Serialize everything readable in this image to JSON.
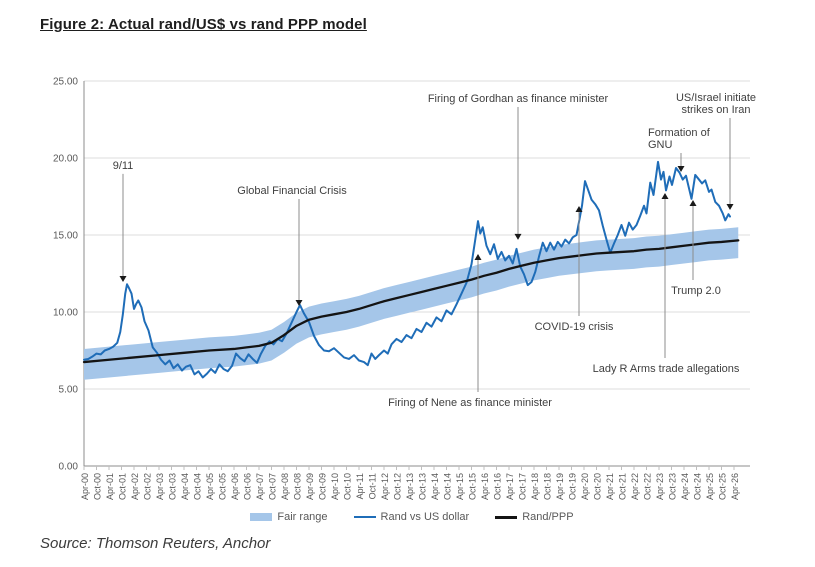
{
  "title": "Figure 2: Actual rand/US$ vs rand PPP model",
  "source": "Source: Thomson Reuters, Anchor",
  "legend": {
    "items": [
      {
        "label": "Fair range"
      },
      {
        "label": "Rand vs US dollar"
      },
      {
        "label": "Rand/PPP"
      }
    ]
  },
  "colors": {
    "band": "#a5c6e9",
    "usd_line": "#1f6db8",
    "ppp_line": "#141414",
    "gridline": "#dcdcdc",
    "axis": "#8c8c8c",
    "tick_text": "#595959",
    "annotation_text": "#3f3f3f",
    "leader_line": "#8c8c8c",
    "arrow": "#1a1a1a"
  },
  "chart_data": {
    "type": "line",
    "title": "",
    "xlabel": "",
    "ylabel": "",
    "x_unit": "years since Apr-2000",
    "ylim": [
      0,
      25
    ],
    "grid": "horizontal",
    "legend_position": "bottom",
    "y_tick_labels": [
      "0.00",
      "5.00",
      "10.00",
      "15.00",
      "20.00",
      "25.00"
    ],
    "y_tick_values": [
      0,
      5,
      10,
      15,
      20,
      25
    ],
    "x_tick_labels": [
      "Apr-00",
      "Oct-00",
      "Apr-01",
      "Oct-01",
      "Apr-02",
      "Oct-02",
      "Apr-03",
      "Oct-03",
      "Apr-04",
      "Oct-04",
      "Apr-05",
      "Oct-05",
      "Apr-06",
      "Oct-06",
      "Apr-07",
      "Oct-07",
      "Apr-08",
      "Oct-08",
      "Apr-09",
      "Oct-09",
      "Apr-10",
      "Oct-10",
      "Apr-11",
      "Oct-11",
      "Apr-12",
      "Oct-12",
      "Apr-13",
      "Oct-13",
      "Apr-14",
      "Oct-14",
      "Apr-15",
      "Oct-15",
      "Apr-16",
      "Oct-16",
      "Apr-17",
      "Oct-17",
      "Apr-18",
      "Oct-18",
      "Apr-19",
      "Oct-19",
      "Apr-20",
      "Oct-20",
      "Apr-21",
      "Oct-21",
      "Apr-22",
      "Oct-22",
      "Apr-23",
      "Oct-23",
      "Apr-24",
      "Oct-24",
      "Apr-25",
      "Oct-25",
      "Apr-26"
    ],
    "series": [
      {
        "name": "Fair range",
        "type": "band",
        "around": "Rand/PPP",
        "halfwidth_up": 0.85,
        "halfwidth_down": 1.15,
        "color": "#a5c6e9"
      },
      {
        "name": "Rand vs US dollar",
        "type": "line",
        "color": "#1f6db8",
        "points": [
          [
            0,
            6.9
          ],
          [
            0.17,
            6.95
          ],
          [
            0.33,
            7.1
          ],
          [
            0.5,
            7.3
          ],
          [
            0.67,
            7.25
          ],
          [
            0.83,
            7.5
          ],
          [
            1.0,
            7.6
          ],
          [
            1.17,
            7.75
          ],
          [
            1.33,
            8.0
          ],
          [
            1.45,
            8.7
          ],
          [
            1.55,
            9.8
          ],
          [
            1.65,
            11.2
          ],
          [
            1.72,
            11.8
          ],
          [
            1.8,
            11.55
          ],
          [
            1.9,
            11.2
          ],
          [
            2.0,
            10.2
          ],
          [
            2.08,
            10.5
          ],
          [
            2.17,
            10.75
          ],
          [
            2.3,
            10.3
          ],
          [
            2.42,
            9.4
          ],
          [
            2.58,
            8.8
          ],
          [
            2.75,
            7.7
          ],
          [
            2.92,
            7.35
          ],
          [
            3.08,
            6.9
          ],
          [
            3.25,
            6.6
          ],
          [
            3.42,
            6.85
          ],
          [
            3.58,
            6.35
          ],
          [
            3.75,
            6.6
          ],
          [
            3.92,
            6.2
          ],
          [
            4.08,
            6.45
          ],
          [
            4.25,
            6.55
          ],
          [
            4.42,
            5.95
          ],
          [
            4.58,
            6.15
          ],
          [
            4.75,
            5.75
          ],
          [
            4.92,
            6.0
          ],
          [
            5.08,
            6.3
          ],
          [
            5.25,
            6.05
          ],
          [
            5.42,
            6.6
          ],
          [
            5.58,
            6.3
          ],
          [
            5.75,
            6.15
          ],
          [
            5.92,
            6.5
          ],
          [
            6.08,
            7.3
          ],
          [
            6.25,
            7.0
          ],
          [
            6.42,
            6.8
          ],
          [
            6.58,
            7.25
          ],
          [
            6.75,
            6.95
          ],
          [
            6.92,
            6.7
          ],
          [
            7.08,
            7.3
          ],
          [
            7.25,
            7.8
          ],
          [
            7.42,
            8.1
          ],
          [
            7.58,
            7.9
          ],
          [
            7.75,
            8.25
          ],
          [
            7.92,
            8.1
          ],
          [
            8.1,
            8.6
          ],
          [
            8.3,
            9.3
          ],
          [
            8.5,
            10.0
          ],
          [
            8.64,
            10.45
          ],
          [
            8.8,
            9.9
          ],
          [
            9.0,
            9.35
          ],
          [
            9.2,
            8.45
          ],
          [
            9.4,
            7.85
          ],
          [
            9.6,
            7.5
          ],
          [
            9.8,
            7.45
          ],
          [
            10.0,
            7.65
          ],
          [
            10.2,
            7.35
          ],
          [
            10.4,
            7.05
          ],
          [
            10.6,
            6.95
          ],
          [
            10.8,
            7.2
          ],
          [
            11.0,
            6.85
          ],
          [
            11.2,
            6.75
          ],
          [
            11.35,
            6.55
          ],
          [
            11.5,
            7.3
          ],
          [
            11.65,
            6.95
          ],
          [
            11.8,
            7.2
          ],
          [
            12.0,
            7.5
          ],
          [
            12.15,
            7.3
          ],
          [
            12.3,
            7.9
          ],
          [
            12.5,
            8.25
          ],
          [
            12.7,
            8.05
          ],
          [
            12.9,
            8.5
          ],
          [
            13.1,
            8.3
          ],
          [
            13.3,
            8.9
          ],
          [
            13.5,
            8.7
          ],
          [
            13.7,
            9.3
          ],
          [
            13.9,
            9.05
          ],
          [
            14.1,
            9.65
          ],
          [
            14.3,
            9.4
          ],
          [
            14.5,
            10.1
          ],
          [
            14.7,
            9.85
          ],
          [
            14.9,
            10.5
          ],
          [
            15.1,
            11.2
          ],
          [
            15.3,
            11.9
          ],
          [
            15.5,
            13.1
          ],
          [
            15.65,
            14.7
          ],
          [
            15.76,
            15.9
          ],
          [
            15.85,
            15.1
          ],
          [
            15.95,
            15.5
          ],
          [
            16.1,
            14.3
          ],
          [
            16.25,
            13.75
          ],
          [
            16.4,
            14.4
          ],
          [
            16.55,
            13.45
          ],
          [
            16.7,
            13.9
          ],
          [
            16.85,
            13.35
          ],
          [
            17.0,
            13.65
          ],
          [
            17.15,
            13.15
          ],
          [
            17.3,
            14.1
          ],
          [
            17.45,
            12.95
          ],
          [
            17.6,
            12.45
          ],
          [
            17.75,
            11.75
          ],
          [
            17.9,
            11.95
          ],
          [
            18.05,
            12.6
          ],
          [
            18.2,
            13.6
          ],
          [
            18.35,
            14.5
          ],
          [
            18.5,
            13.95
          ],
          [
            18.65,
            14.5
          ],
          [
            18.8,
            14.05
          ],
          [
            18.95,
            14.55
          ],
          [
            19.1,
            14.25
          ],
          [
            19.25,
            14.7
          ],
          [
            19.4,
            14.45
          ],
          [
            19.55,
            14.85
          ],
          [
            19.7,
            15.0
          ],
          [
            19.8,
            15.85
          ],
          [
            19.92,
            16.9
          ],
          [
            20.04,
            18.5
          ],
          [
            20.15,
            18.0
          ],
          [
            20.3,
            17.3
          ],
          [
            20.45,
            17.0
          ],
          [
            20.6,
            16.6
          ],
          [
            20.75,
            15.6
          ],
          [
            20.9,
            14.7
          ],
          [
            21.05,
            13.85
          ],
          [
            21.2,
            14.45
          ],
          [
            21.35,
            15.0
          ],
          [
            21.5,
            15.65
          ],
          [
            21.65,
            14.95
          ],
          [
            21.8,
            15.8
          ],
          [
            21.95,
            15.35
          ],
          [
            22.1,
            15.65
          ],
          [
            22.25,
            16.25
          ],
          [
            22.4,
            16.9
          ],
          [
            22.5,
            16.4
          ],
          [
            22.65,
            18.4
          ],
          [
            22.78,
            17.6
          ],
          [
            22.96,
            19.75
          ],
          [
            23.08,
            18.6
          ],
          [
            23.18,
            19.1
          ],
          [
            23.28,
            17.9
          ],
          [
            23.42,
            18.8
          ],
          [
            23.52,
            18.25
          ],
          [
            23.68,
            19.35
          ],
          [
            23.82,
            19.05
          ],
          [
            23.95,
            18.6
          ],
          [
            24.08,
            18.85
          ],
          [
            24.3,
            17.35
          ],
          [
            24.45,
            18.9
          ],
          [
            24.6,
            18.6
          ],
          [
            24.72,
            18.35
          ],
          [
            24.85,
            18.55
          ],
          [
            25.0,
            17.8
          ],
          [
            25.1,
            17.95
          ],
          [
            25.25,
            17.15
          ],
          [
            25.4,
            16.9
          ],
          [
            25.55,
            16.4
          ],
          [
            25.65,
            15.95
          ],
          [
            25.78,
            16.35
          ],
          [
            25.84,
            16.2
          ]
        ]
      },
      {
        "name": "Rand/PPP",
        "type": "line",
        "color": "#141414",
        "points": [
          [
            0,
            6.75
          ],
          [
            1,
            6.9
          ],
          [
            2,
            7.05
          ],
          [
            3,
            7.2
          ],
          [
            4,
            7.35
          ],
          [
            5,
            7.5
          ],
          [
            6,
            7.6
          ],
          [
            6.5,
            7.7
          ],
          [
            7,
            7.8
          ],
          [
            7.5,
            8.0
          ],
          [
            8,
            8.5
          ],
          [
            8.5,
            9.1
          ],
          [
            9,
            9.5
          ],
          [
            9.5,
            9.7
          ],
          [
            10,
            9.85
          ],
          [
            10.5,
            10.0
          ],
          [
            11,
            10.2
          ],
          [
            11.5,
            10.45
          ],
          [
            12,
            10.7
          ],
          [
            12.5,
            10.9
          ],
          [
            13,
            11.1
          ],
          [
            13.5,
            11.3
          ],
          [
            14,
            11.5
          ],
          [
            14.5,
            11.7
          ],
          [
            15,
            11.9
          ],
          [
            15.5,
            12.1
          ],
          [
            16,
            12.35
          ],
          [
            16.5,
            12.55
          ],
          [
            17,
            12.8
          ],
          [
            17.5,
            13.0
          ],
          [
            18,
            13.2
          ],
          [
            18.5,
            13.35
          ],
          [
            19,
            13.5
          ],
          [
            19.5,
            13.6
          ],
          [
            20,
            13.7
          ],
          [
            20.5,
            13.8
          ],
          [
            21,
            13.85
          ],
          [
            21.5,
            13.9
          ],
          [
            22,
            13.95
          ],
          [
            22.5,
            14.05
          ],
          [
            23,
            14.1
          ],
          [
            23.5,
            14.2
          ],
          [
            24,
            14.3
          ],
          [
            24.5,
            14.4
          ],
          [
            25,
            14.5
          ],
          [
            25.5,
            14.55
          ],
          [
            26.17,
            14.65
          ]
        ]
      }
    ],
    "annotations": [
      {
        "label": "9/11",
        "tip": [
          1.56,
          11.95
        ],
        "text": [
          1.56,
          19.29
        ],
        "dir": "down",
        "anchor": "middle"
      },
      {
        "label": "Global Financial Crisis",
        "tip": [
          8.6,
          10.39
        ],
        "text": [
          8.32,
          17.66
        ],
        "dir": "down",
        "anchor": "middle"
      },
      {
        "label": "Firing of Gordhan as finance minister",
        "tip": [
          17.36,
          14.68
        ],
        "text": [
          17.36,
          23.64
        ],
        "dir": "down",
        "anchor": "middle"
      },
      {
        "label": "Firing of Nene as finance minister",
        "tip": [
          15.76,
          13.77
        ],
        "text": [
          15.44,
          3.9
        ],
        "dir": "up",
        "anchor": "middle"
      },
      {
        "label": "COVID-19 crisis",
        "tip": [
          19.8,
          16.88
        ],
        "text": [
          19.6,
          8.83
        ],
        "dir": "up",
        "anchor": "middle"
      },
      {
        "label": "Lady R Arms trade allegations",
        "tip": [
          23.24,
          17.73
        ],
        "text": [
          23.28,
          6.1
        ],
        "dir": "up",
        "anchor": "middle"
      },
      {
        "label": "Trump 2.0",
        "tip": [
          24.36,
          17.27
        ],
        "text": [
          24.48,
          11.17
        ],
        "dir": "up",
        "anchor": "middle"
      },
      {
        "label": "Formation of\nGNU",
        "tip": [
          23.88,
          19.09
        ],
        "text": [
          22.56,
          21.43
        ],
        "dir": "down",
        "anchor": "start"
      },
      {
        "label": "US/Israel initiate\nstrikes on Iran",
        "tip": [
          25.84,
          16.62
        ],
        "text": [
          25.28,
          23.7
        ],
        "dir": "down",
        "anchor": "middle"
      }
    ]
  }
}
